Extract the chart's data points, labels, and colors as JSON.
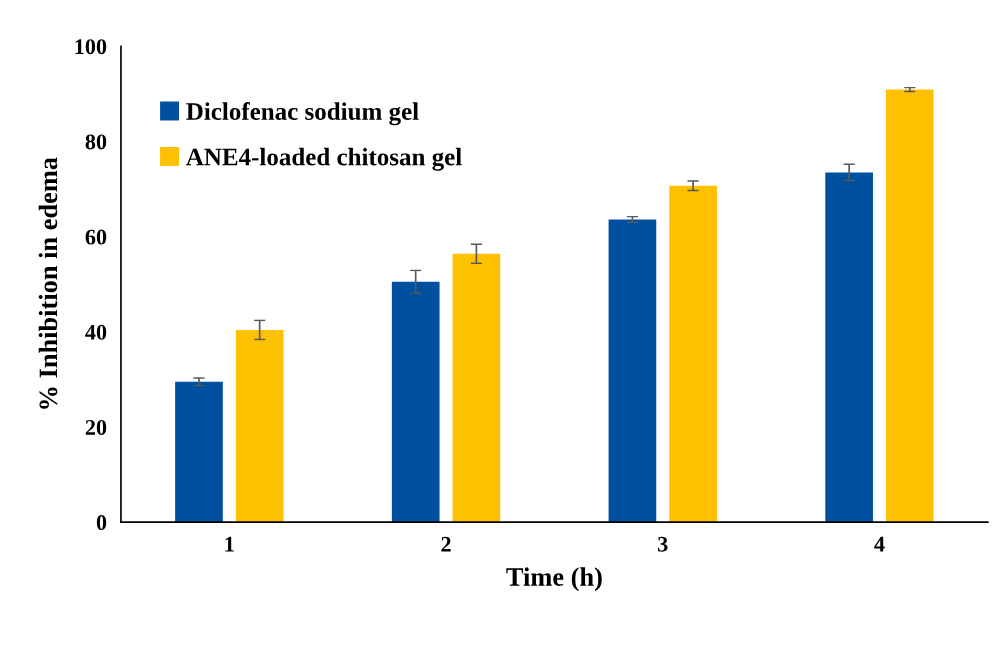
{
  "chart_data": {
    "type": "bar",
    "xlabel": "Time (h)",
    "ylabel": "% Inhibition in edema",
    "categories": [
      "1",
      "2",
      "3",
      "4"
    ],
    "series": [
      {
        "name": "Diclofenac sodium gel",
        "color": "#0050a0",
        "values": [
          29.5,
          50.5,
          63.6,
          73.5
        ],
        "errors": [
          0.8,
          2.4,
          0.6,
          1.7
        ]
      },
      {
        "name": "ANE4-loaded chitosan gel",
        "color": "#ffc000",
        "values": [
          40.4,
          56.4,
          70.7,
          90.9
        ],
        "errors": [
          2.0,
          2.0,
          1.0,
          0.4
        ]
      }
    ],
    "ylim": [
      0,
      100
    ],
    "yticks": [
      0,
      20,
      40,
      60,
      80,
      100
    ],
    "grid": false,
    "legend": "top left"
  }
}
